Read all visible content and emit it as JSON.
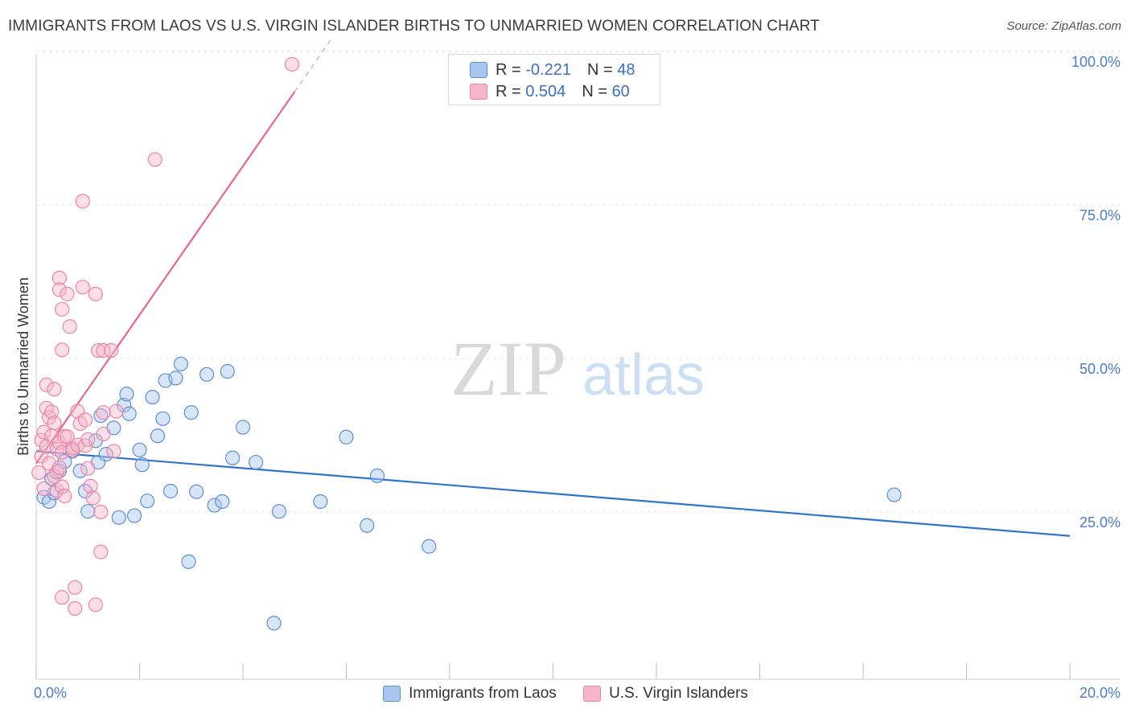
{
  "header": {
    "title": "IMMIGRANTS FROM LAOS VS U.S. VIRGIN ISLANDER BIRTHS TO UNMARRIED WOMEN CORRELATION CHART",
    "source": "Source: ZipAtlas.com"
  },
  "colors": {
    "blue_fill": "#a9c6ee",
    "blue_stroke": "#5b8fd6",
    "blue_line": "#2f74cf",
    "pink_fill": "#f6b6ca",
    "pink_stroke": "#ea86a6",
    "pink_line": "#e8668f",
    "tick_text": "#4a7cc7",
    "grid": "#e3e3e3"
  },
  "legend_top": {
    "rows": [
      {
        "r_label": "R =",
        "r_value": "-0.221",
        "n_label": "N =",
        "n_value": "48",
        "swatch": "#a9c6ee"
      },
      {
        "r_label": "R =",
        "r_value": "0.504",
        "n_label": "N =",
        "n_value": "60",
        "swatch": "#f6b6ca"
      }
    ]
  },
  "legend_bottom": {
    "items": [
      {
        "label": "Immigrants from Laos",
        "swatch": "#a9c6ee"
      },
      {
        "label": "U.S. Virgin Islanders",
        "swatch": "#f6b6ca"
      }
    ]
  },
  "watermark": {
    "zip": "ZIP",
    "atlas": "atlas"
  },
  "chart_data": {
    "type": "scatter",
    "title": "IMMIGRANTS FROM LAOS VS U.S. VIRGIN ISLANDER BIRTHS TO UNMARRIED WOMEN CORRELATION CHART",
    "xlabel": "",
    "ylabel": "Births to Unmarried Women",
    "xlim": [
      0,
      20
    ],
    "ylim": [
      0,
      102
    ],
    "x_tick_labels": [
      {
        "value": 0,
        "label": "0.0%"
      },
      {
        "value": 20,
        "label": "20.0%"
      }
    ],
    "y_tick_labels": [
      {
        "value": 25,
        "label": "25.0%"
      },
      {
        "value": 50,
        "label": "50.0%"
      },
      {
        "value": 75,
        "label": "75.0%"
      },
      {
        "value": 100,
        "label": "100.0%"
      }
    ],
    "x_minor_ticks": [
      0,
      2,
      4,
      6,
      8,
      10,
      12,
      14,
      16,
      18,
      20
    ],
    "series": [
      {
        "name": "Immigrants from Laos",
        "color": "#a9c6ee",
        "r": -0.221,
        "n": 48,
        "trend": {
          "x0": 0,
          "y0": 37.0,
          "x1": 20,
          "y1": 23.2,
          "solid_until_x": 20
        },
        "points": [
          [
            0.15,
            29.5
          ],
          [
            0.25,
            28.8
          ],
          [
            0.3,
            32.5
          ],
          [
            0.35,
            30.2
          ],
          [
            0.45,
            33.8
          ],
          [
            0.55,
            35.3
          ],
          [
            0.7,
            37.0
          ],
          [
            0.85,
            33.8
          ],
          [
            0.95,
            30.5
          ],
          [
            1.0,
            27.2
          ],
          [
            1.15,
            38.7
          ],
          [
            1.2,
            35.2
          ],
          [
            1.25,
            42.8
          ],
          [
            1.35,
            36.5
          ],
          [
            1.5,
            40.8
          ],
          [
            1.6,
            26.2
          ],
          [
            1.7,
            44.5
          ],
          [
            1.75,
            46.3
          ],
          [
            1.8,
            43.1
          ],
          [
            1.9,
            26.5
          ],
          [
            2.0,
            37.2
          ],
          [
            2.05,
            34.8
          ],
          [
            2.15,
            28.9
          ],
          [
            2.25,
            45.8
          ],
          [
            2.35,
            39.5
          ],
          [
            2.45,
            42.3
          ],
          [
            2.5,
            48.5
          ],
          [
            2.6,
            30.5
          ],
          [
            2.7,
            48.9
          ],
          [
            2.8,
            51.2
          ],
          [
            2.95,
            19.0
          ],
          [
            3.0,
            43.3
          ],
          [
            3.1,
            30.4
          ],
          [
            3.3,
            49.5
          ],
          [
            3.45,
            28.2
          ],
          [
            3.6,
            28.8
          ],
          [
            3.7,
            50.0
          ],
          [
            3.8,
            35.9
          ],
          [
            4.0,
            40.9
          ],
          [
            4.25,
            35.2
          ],
          [
            4.6,
            9.0
          ],
          [
            4.7,
            27.2
          ],
          [
            5.5,
            28.8
          ],
          [
            6.0,
            39.3
          ],
          [
            6.4,
            24.9
          ],
          [
            6.6,
            33.0
          ],
          [
            7.6,
            21.5
          ],
          [
            16.6,
            29.9
          ]
        ]
      },
      {
        "name": "U.S. Virgin Islanders",
        "color": "#f6b6ca",
        "r": 0.504,
        "n": 60,
        "trend": {
          "x0": 0,
          "y0": 35.0,
          "x1": 5.7,
          "y1": 104.0,
          "solid_until_x": 5.0
        },
        "points": [
          [
            0.05,
            33.5
          ],
          [
            0.1,
            36.2
          ],
          [
            0.1,
            38.8
          ],
          [
            0.15,
            30.9
          ],
          [
            0.15,
            40.1
          ],
          [
            0.2,
            37.8
          ],
          [
            0.2,
            44.0
          ],
          [
            0.2,
            47.8
          ],
          [
            0.25,
            35.0
          ],
          [
            0.25,
            42.5
          ],
          [
            0.3,
            39.5
          ],
          [
            0.3,
            43.4
          ],
          [
            0.35,
            41.6
          ],
          [
            0.35,
            47.1
          ],
          [
            0.35,
            32.9
          ],
          [
            0.4,
            33.6
          ],
          [
            0.4,
            37.3
          ],
          [
            0.4,
            30.6
          ],
          [
            0.45,
            38.4
          ],
          [
            0.45,
            34.3
          ],
          [
            0.5,
            60.1
          ],
          [
            0.5,
            53.5
          ],
          [
            0.5,
            36.8
          ],
          [
            0.45,
            65.2
          ],
          [
            0.45,
            63.3
          ],
          [
            0.5,
            31.2
          ],
          [
            0.55,
            39.4
          ],
          [
            0.55,
            29.7
          ],
          [
            0.6,
            62.6
          ],
          [
            0.5,
            13.2
          ],
          [
            0.6,
            39.4
          ],
          [
            0.65,
            57.3
          ],
          [
            0.7,
            37.5
          ],
          [
            0.7,
            37.2
          ],
          [
            0.75,
            11.4
          ],
          [
            0.75,
            14.8
          ],
          [
            0.8,
            38.0
          ],
          [
            0.8,
            43.5
          ],
          [
            0.85,
            41.5
          ],
          [
            0.9,
            77.7
          ],
          [
            0.9,
            63.7
          ],
          [
            0.95,
            42.1
          ],
          [
            0.95,
            37.9
          ],
          [
            1.0,
            38.9
          ],
          [
            1.0,
            34.2
          ],
          [
            1.05,
            31.3
          ],
          [
            1.1,
            29.4
          ],
          [
            1.15,
            62.6
          ],
          [
            1.15,
            12.0
          ],
          [
            1.2,
            53.4
          ],
          [
            1.25,
            27.1
          ],
          [
            1.25,
            20.6
          ],
          [
            1.3,
            53.4
          ],
          [
            1.3,
            39.8
          ],
          [
            1.3,
            43.3
          ],
          [
            1.45,
            53.4
          ],
          [
            1.55,
            43.5
          ],
          [
            2.3,
            84.5
          ],
          [
            4.95,
            100.0
          ],
          [
            1.5,
            37.0
          ]
        ]
      }
    ]
  }
}
